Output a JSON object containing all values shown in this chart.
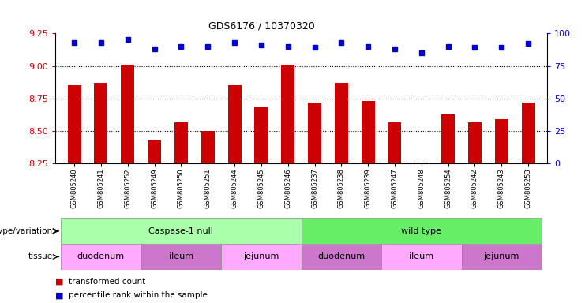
{
  "title": "GDS6176 / 10370320",
  "samples": [
    "GSM805240",
    "GSM805241",
    "GSM805252",
    "GSM805249",
    "GSM805250",
    "GSM805251",
    "GSM805244",
    "GSM805245",
    "GSM805246",
    "GSM805237",
    "GSM805238",
    "GSM805239",
    "GSM805247",
    "GSM805248",
    "GSM805254",
    "GSM805242",
    "GSM805243",
    "GSM805253"
  ],
  "bar_values": [
    8.85,
    8.87,
    9.01,
    8.43,
    8.57,
    8.5,
    8.85,
    8.68,
    9.01,
    8.72,
    8.87,
    8.73,
    8.57,
    8.26,
    8.63,
    8.57,
    8.59,
    8.72
  ],
  "percentile_values": [
    93,
    93,
    95,
    88,
    90,
    90,
    93,
    91,
    90,
    89,
    93,
    90,
    88,
    85,
    90,
    89,
    89,
    92
  ],
  "ylim_left": [
    8.25,
    9.25
  ],
  "ylim_right": [
    0,
    100
  ],
  "yticks_left": [
    8.25,
    8.5,
    8.75,
    9.0,
    9.25
  ],
  "yticks_right": [
    0,
    25,
    50,
    75,
    100
  ],
  "bar_color": "#cc0000",
  "dot_color": "#0000cc",
  "genotype_groups": [
    {
      "label": "Caspase-1 null",
      "start": 0,
      "end": 8,
      "color": "#aaffaa"
    },
    {
      "label": "wild type",
      "start": 9,
      "end": 17,
      "color": "#66ee66"
    }
  ],
  "tissue_groups": [
    {
      "label": "duodenum",
      "start": 0,
      "end": 2,
      "color": "#ffaaff"
    },
    {
      "label": "ileum",
      "start": 3,
      "end": 5,
      "color": "#cc77cc"
    },
    {
      "label": "jejunum",
      "start": 6,
      "end": 8,
      "color": "#ffaaff"
    },
    {
      "label": "duodenum",
      "start": 9,
      "end": 11,
      "color": "#cc77cc"
    },
    {
      "label": "ileum",
      "start": 12,
      "end": 14,
      "color": "#ffaaff"
    },
    {
      "label": "jejunum",
      "start": 15,
      "end": 17,
      "color": "#cc77cc"
    }
  ],
  "legend_items": [
    {
      "label": "transformed count",
      "color": "#cc0000"
    },
    {
      "label": "percentile rank within the sample",
      "color": "#0000cc"
    }
  ],
  "xlabel_genotype": "genotype/variation",
  "xlabel_tissue": "tissue"
}
